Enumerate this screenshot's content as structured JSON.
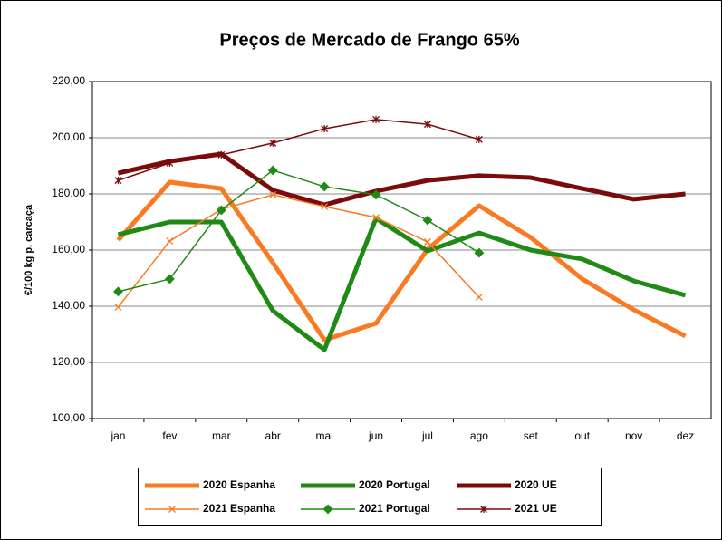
{
  "chart_data": {
    "type": "line",
    "title": "Preços de Mercado de Frango 65%",
    "y_label": "€/100 kg p. carcaça",
    "categories": [
      "jan",
      "fev",
      "mar",
      "abr",
      "mai",
      "jun",
      "jul",
      "ago",
      "set",
      "out",
      "nov",
      "dez"
    ],
    "ylim": [
      100,
      220
    ],
    "yticks": [
      {
        "value": 100,
        "label": "100,00"
      },
      {
        "value": 120,
        "label": "120,00"
      },
      {
        "value": 140,
        "label": "140,00"
      },
      {
        "value": 160,
        "label": "160,00"
      },
      {
        "value": 180,
        "label": "180,00"
      },
      {
        "value": 200,
        "label": "200,00"
      },
      {
        "value": 220,
        "label": "220,00"
      }
    ],
    "grid": true,
    "legend": "bottom",
    "series": [
      {
        "name": "2020 Espanha",
        "color": "#f97a23",
        "linewidth": 5,
        "marker": "none",
        "values": [
          163.5,
          184.2,
          181.9,
          155.5,
          128,
          133.9,
          160.3,
          175.8,
          164.5,
          149.7,
          138.7,
          129.4
        ]
      },
      {
        "name": "2020 Portugal",
        "color": "#1f8a14",
        "linewidth": 5,
        "marker": "none",
        "values": [
          165.5,
          170,
          170,
          138.4,
          124.5,
          171.3,
          159.7,
          166.1,
          160,
          156.8,
          149,
          143.9
        ]
      },
      {
        "name": "2020 UE",
        "color": "#7b0a0a",
        "linewidth": 5,
        "marker": "none",
        "values": [
          187.4,
          191.6,
          194.2,
          181.3,
          176.1,
          181,
          184.8,
          186.5,
          185.8,
          181.9,
          178.1,
          180
        ]
      },
      {
        "name": "2021 Espanha",
        "color": "#f97a23",
        "linewidth": 1.5,
        "marker": "x",
        "values": [
          139.7,
          163.2,
          174.5,
          179.7,
          175.5,
          171.6,
          162.9,
          143.2,
          null,
          null,
          null,
          null
        ]
      },
      {
        "name": "2021 Portugal",
        "color": "#1f8a14",
        "linewidth": 1.5,
        "marker": "diamond",
        "values": [
          145.2,
          149.7,
          174.2,
          188.4,
          182.6,
          179.7,
          170.6,
          159,
          null,
          null,
          null,
          null
        ]
      },
      {
        "name": "2021 UE",
        "color": "#7b0a0a",
        "linewidth": 1.5,
        "marker": "star",
        "values": [
          184.8,
          191,
          193.9,
          198.1,
          203.2,
          206.5,
          204.8,
          199.4,
          null,
          null,
          null,
          null
        ]
      }
    ]
  }
}
